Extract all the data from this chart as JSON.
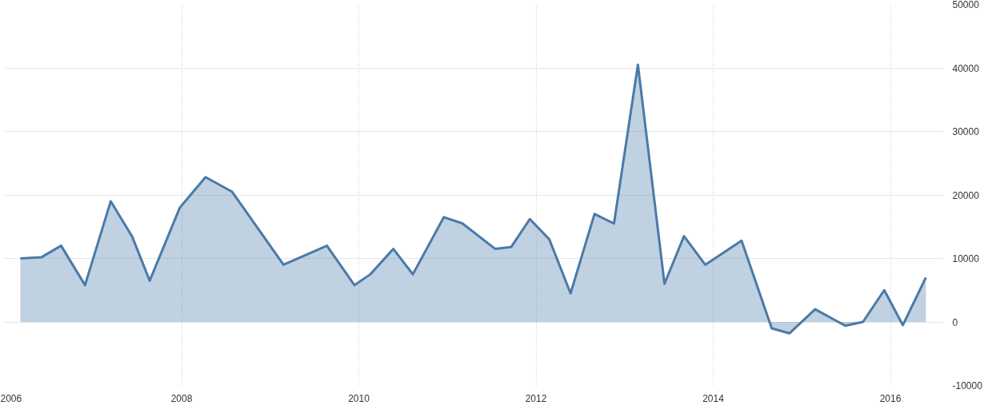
{
  "chart_data": {
    "type": "area",
    "x": [
      2006.18,
      2006.42,
      2006.64,
      2006.91,
      2007.2,
      2007.44,
      2007.64,
      2007.98,
      2008.27,
      2008.57,
      2009.15,
      2009.64,
      2009.95,
      2010.13,
      2010.39,
      2010.61,
      2010.96,
      2011.17,
      2011.54,
      2011.72,
      2011.93,
      2012.15,
      2012.39,
      2012.66,
      2012.88,
      2013.15,
      2013.45,
      2013.67,
      2013.91,
      2014.32,
      2014.66,
      2014.86,
      2015.15,
      2015.49,
      2015.69,
      2015.93,
      2016.14,
      2016.4
    ],
    "series": [
      {
        "color": "#4a7aa8",
        "values": [
          10000,
          10200,
          12000,
          5800,
          19000,
          13500,
          6500,
          18000,
          22800,
          20500,
          9000,
          12000,
          5800,
          7500,
          11500,
          7500,
          16500,
          15500,
          11500,
          11800,
          16200,
          13000,
          4500,
          17000,
          15500,
          40500,
          6000,
          13500,
          9000,
          12800,
          -1000,
          -1800,
          2000,
          -600,
          0,
          5000,
          -500,
          7000
        ]
      }
    ],
    "xlim": [
      2006,
      2016.6
    ],
    "xticks": [
      2006,
      2008,
      2010,
      2012,
      2014,
      2016
    ],
    "ylim": [
      -10000,
      50000
    ],
    "yticks": [
      -10000,
      0,
      10000,
      20000,
      30000,
      40000,
      50000
    ],
    "grid": true
  }
}
